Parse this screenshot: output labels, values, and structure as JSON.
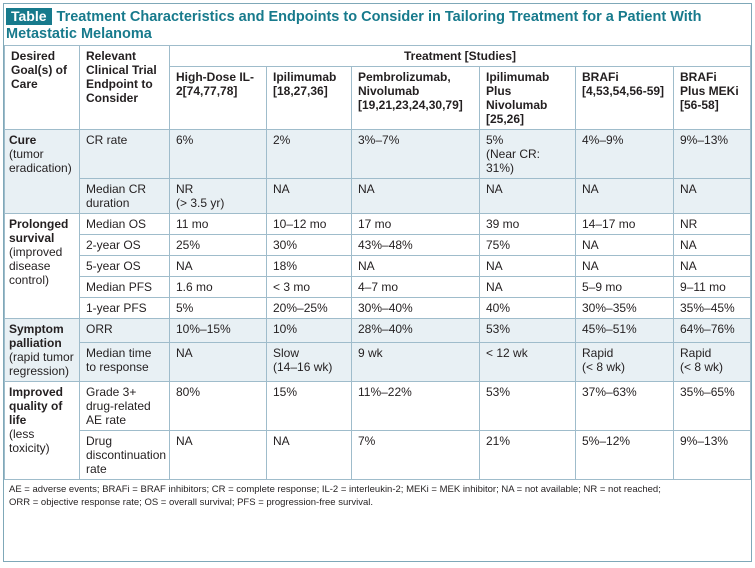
{
  "title": {
    "badge": "Table",
    "text": "Treatment Characteristics and Endpoints to Consider in Tailoring Treatment for a Patient With Metastatic Melanoma"
  },
  "table": {
    "header": {
      "goal": "Desired Goal(s) of Care",
      "endpoint": "Relevant Clinical Trial Endpoint to Consider",
      "treatment": "Treatment [Studies]",
      "columns": [
        "High-Dose IL-2[74,77,78]",
        "Ipilimumab [18,27,36]",
        "Pembrolizumab, Nivolumab [19,21,23,24,30,79]",
        "Ipilimumab Plus Nivolumab [25,26]",
        "BRAFi [4,53,54,56-59]",
        "BRAFi Plus MEKi [56-58]"
      ]
    },
    "groups": [
      {
        "goal": "Cure",
        "note": "(tumor eradication)",
        "rows": [
          {
            "endpoint": "CR rate",
            "cells": [
              "6%",
              "2%",
              "3%–7%",
              "5%\n(Near CR: 31%)",
              "4%–9%",
              "9%–13%"
            ]
          },
          {
            "endpoint": "Median CR duration",
            "cells": [
              "NR\n(> 3.5 yr)",
              "NA",
              "NA",
              "NA",
              "NA",
              "NA"
            ]
          }
        ]
      },
      {
        "goal": "Prolonged survival",
        "note": "(improved disease control)",
        "rows": [
          {
            "endpoint": "Median OS",
            "cells": [
              "11 mo",
              "10–12 mo",
              "17 mo",
              "39 mo",
              "14–17 mo",
              "NR"
            ]
          },
          {
            "endpoint": "2-year OS",
            "cells": [
              "25%",
              "30%",
              "43%–48%",
              "75%",
              "NA",
              "NA"
            ]
          },
          {
            "endpoint": "5-year OS",
            "cells": [
              "NA",
              "18%",
              "NA",
              "NA",
              "NA",
              "NA"
            ]
          },
          {
            "endpoint": "Median PFS",
            "cells": [
              "1.6 mo",
              "< 3 mo",
              "4–7 mo",
              "NA",
              "5–9 mo",
              "9–11 mo"
            ]
          },
          {
            "endpoint": "1-year PFS",
            "cells": [
              "5%",
              "20%–25%",
              "30%–40%",
              "40%",
              "30%–35%",
              "35%–45%"
            ]
          }
        ]
      },
      {
        "goal": "Symptom palliation",
        "note": "(rapid tumor regression)",
        "rows": [
          {
            "endpoint": "ORR",
            "cells": [
              "10%–15%",
              "10%",
              "28%–40%",
              "53%",
              "45%–51%",
              "64%–76%"
            ]
          },
          {
            "endpoint": "Median time to response",
            "cells": [
              "NA",
              "Slow\n(14–16 wk)",
              "9 wk",
              "< 12 wk",
              "Rapid\n(< 8 wk)",
              "Rapid\n(< 8 wk)"
            ]
          }
        ]
      },
      {
        "goal": "Improved quality of life",
        "note": "(less toxicity)",
        "rows": [
          {
            "endpoint": "Grade 3+ drug-related AE rate",
            "cells": [
              "80%",
              "15%",
              "11%–22%",
              "53%",
              "37%–63%",
              "35%–65%"
            ]
          },
          {
            "endpoint": "Drug discontinuation rate",
            "cells": [
              "NA",
              "NA",
              "7%",
              "21%",
              "5%–12%",
              "9%–13%"
            ]
          }
        ]
      }
    ]
  },
  "footnote": [
    "AE = adverse events; BRAFi = BRAF inhibitors; CR = complete response; IL-2 = interleukin-2; MEKi = MEK inhibitor; NA = not available; NR = not reached;",
    "ORR = objective response rate; OS = overall survival; PFS = progression-free survival."
  ]
}
